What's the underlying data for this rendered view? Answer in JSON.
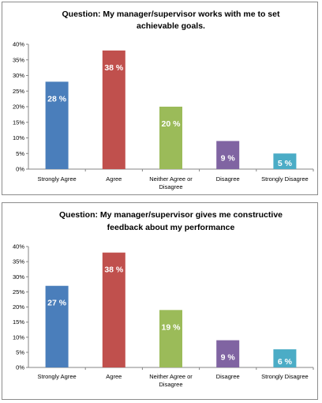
{
  "chart_data": [
    {
      "type": "bar",
      "title": "Question: My manager/supervisor works with me to set achievable goals.",
      "title_lines": [
        "Question: My manager/supervisor works with me to set",
        "achievable goals."
      ],
      "categories": [
        "Strongly Agree",
        "Agree",
        "Neither Agree or Disagree",
        "Disagree",
        "Strongly Disagree"
      ],
      "category_lines": [
        [
          "Strongly Agree"
        ],
        [
          "Agree"
        ],
        [
          "Neither Agree or",
          "Disagree"
        ],
        [
          "Disagree"
        ],
        [
          "Strongly Disagree"
        ]
      ],
      "values": [
        28,
        38,
        20,
        9,
        5
      ],
      "data_labels": [
        "28 %",
        "38 %",
        "20 %",
        "9 %",
        "5 %"
      ],
      "yticks": [
        "0%",
        "5%",
        "10%",
        "15%",
        "20%",
        "25%",
        "30%",
        "35%",
        "40%"
      ],
      "ylim": [
        0,
        40
      ],
      "grid": false,
      "legend": "none",
      "colors": [
        "#4a7ebb",
        "#c0504d",
        "#9bbb59",
        "#8064a2",
        "#4bacc6"
      ]
    },
    {
      "type": "bar",
      "title": "Question: My manager/supervisor gives me constructive feedback about my performance",
      "title_lines": [
        "Question: My manager/supervisor gives me constructive",
        "feedback about my performance"
      ],
      "categories": [
        "Strongly Agree",
        "Agree",
        "Neither Agree or Disagree",
        "Disagree",
        "Strongly Disagree"
      ],
      "category_lines": [
        [
          "Strongly Agree"
        ],
        [
          "Agree"
        ],
        [
          "Neither Agree or",
          "Disagree"
        ],
        [
          "Disagree"
        ],
        [
          "Strongly Disagree"
        ]
      ],
      "values": [
        27,
        38,
        19,
        9,
        6
      ],
      "data_labels": [
        "27 %",
        "38 %",
        "19 %",
        "9 %",
        "6 %"
      ],
      "yticks": [
        "0%",
        "5%",
        "10%",
        "15%",
        "20%",
        "25%",
        "30%",
        "35%",
        "40%"
      ],
      "ylim": [
        0,
        40
      ],
      "grid": false,
      "legend": "none",
      "colors": [
        "#4a7ebb",
        "#c0504d",
        "#9bbb59",
        "#8064a2",
        "#4bacc6"
      ]
    }
  ]
}
